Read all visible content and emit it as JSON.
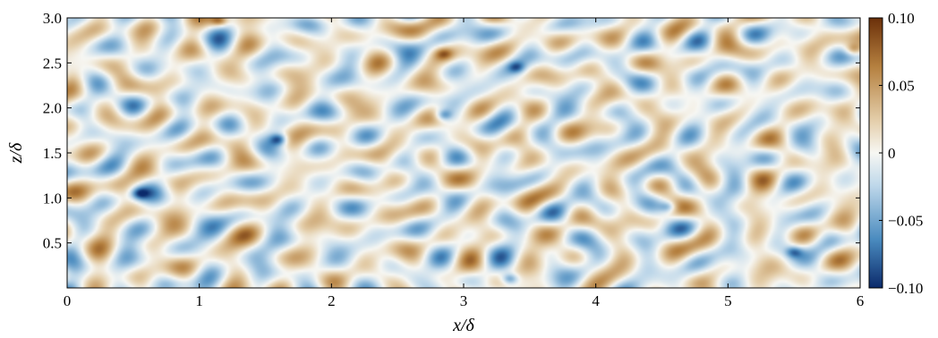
{
  "chart_data": {
    "type": "heatmap",
    "title": "",
    "xlabel": "x/δ",
    "ylabel": "z/δ",
    "xlim": [
      0,
      6
    ],
    "ylim": [
      0,
      3
    ],
    "x_ticks": [
      0,
      1,
      2,
      3,
      4,
      5,
      6
    ],
    "x_tick_labels": [
      "0",
      "1",
      "2",
      "3",
      "4",
      "5",
      "6"
    ],
    "y_ticks": [
      0.5,
      1.0,
      1.5,
      2.0,
      2.5,
      3.0
    ],
    "y_tick_labels": [
      "0.5",
      "1.0",
      "1.5",
      "2.0",
      "2.5",
      "3.0"
    ],
    "colorbar": {
      "range": [
        -0.1,
        0.1
      ],
      "ticks": [
        0.1,
        0.05,
        0,
        -0.05,
        -0.1
      ],
      "tick_labels": [
        "0.10",
        "0.05",
        "0",
        "−0.05",
        "−0.10"
      ],
      "colors": {
        "min": "#0b2a6b",
        "low": "#4a8bbf",
        "mid_low": "#bfd8ea",
        "zero": "#f7f7f3",
        "mid_high": "#e4ceaa",
        "high": "#b5803f",
        "max": "#6b300a"
      }
    },
    "field_note": "random small-scale fluctuation field; extreme negative spot near x≈1.6, z≈1.65",
    "extremes": [
      {
        "x": 1.6,
        "z": 1.65,
        "value": -0.1
      },
      {
        "x": 1.15,
        "z": 2.97,
        "value": 0.09
      },
      {
        "x": 2.85,
        "z": 1.92,
        "value": -0.08
      },
      {
        "x": 3.4,
        "z": 2.45,
        "value": -0.07
      },
      {
        "x": 0.55,
        "z": 1.05,
        "value": -0.08
      },
      {
        "x": 3.35,
        "z": 0.1,
        "value": -0.09
      },
      {
        "x": 4.55,
        "z": 0.9,
        "value": -0.07
      },
      {
        "x": 5.5,
        "z": 0.4,
        "value": -0.07
      },
      {
        "x": 5.95,
        "z": 2.65,
        "value": 0.07
      },
      {
        "x": 2.85,
        "z": 2.6,
        "value": 0.06
      }
    ]
  }
}
